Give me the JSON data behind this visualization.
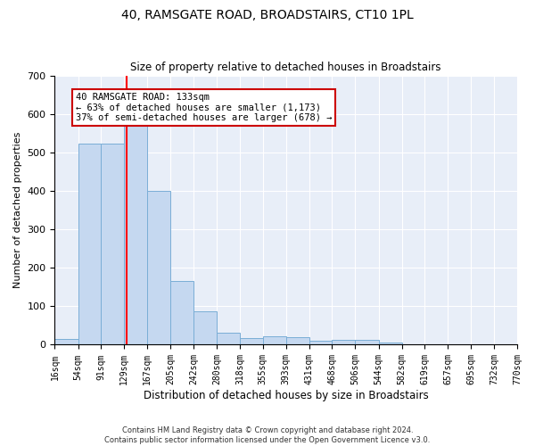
{
  "title": "40, RAMSGATE ROAD, BROADSTAIRS, CT10 1PL",
  "subtitle": "Size of property relative to detached houses in Broadstairs",
  "xlabel": "Distribution of detached houses by size in Broadstairs",
  "ylabel": "Number of detached properties",
  "bar_color": "#c5d8f0",
  "bar_edge_color": "#7aaed6",
  "background_color": "#e8eef8",
  "grid_color": "#ffffff",
  "red_line_x": 133,
  "bins": [
    16,
    54,
    91,
    129,
    167,
    205,
    242,
    280,
    318,
    355,
    393,
    431,
    468,
    506,
    544,
    582,
    619,
    657,
    695,
    732,
    770
  ],
  "counts": [
    15,
    522,
    523,
    585,
    401,
    165,
    88,
    32,
    18,
    21,
    20,
    10,
    12,
    12,
    6,
    0,
    0,
    0,
    0,
    0
  ],
  "ylim": [
    0,
    700
  ],
  "yticks": [
    0,
    100,
    200,
    300,
    400,
    500,
    600,
    700
  ],
  "annotation_text": "40 RAMSGATE ROAD: 133sqm\n← 63% of detached houses are smaller (1,173)\n37% of semi-detached houses are larger (678) →",
  "annotation_box_color": "#ffffff",
  "annotation_box_edge": "#cc0000",
  "footnote": "Contains HM Land Registry data © Crown copyright and database right 2024.\nContains public sector information licensed under the Open Government Licence v3.0."
}
